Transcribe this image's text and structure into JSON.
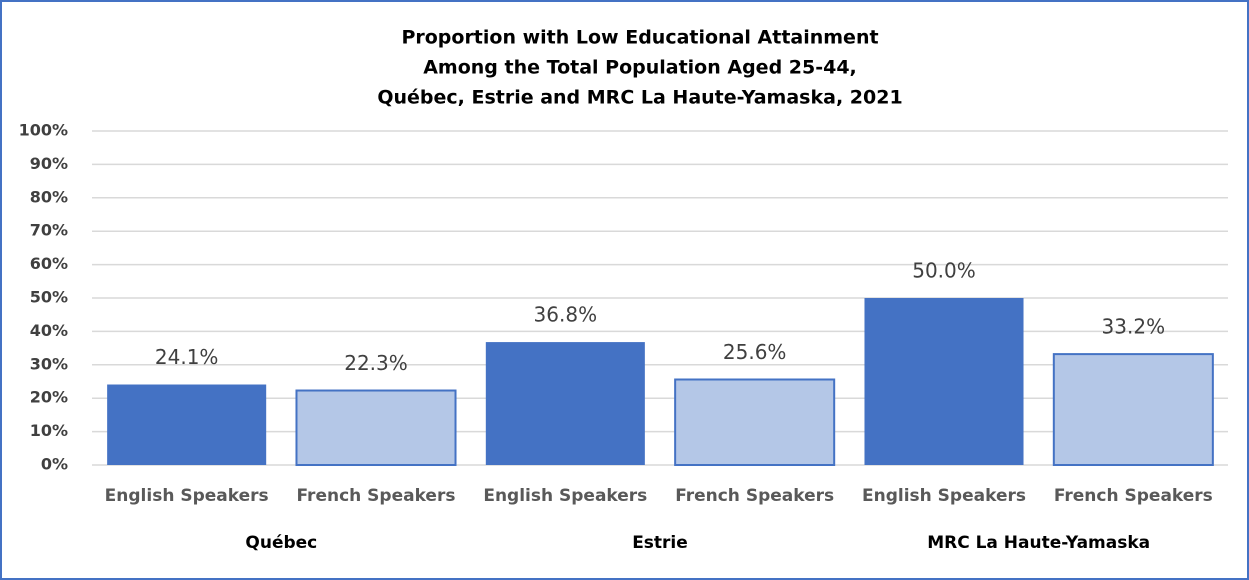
{
  "chart_data": {
    "type": "bar",
    "title": [
      "Proportion with Low Educational Attainment",
      "Among the Total Population Aged 25-44,",
      "Québec, Estrie and MRC La Haute-Yamaska, 2021"
    ],
    "categories": [
      "English Speakers",
      "French Speakers",
      "English Speakers",
      "French Speakers",
      "English Speakers",
      "French Speakers"
    ],
    "groups": [
      "Québec",
      "Estrie",
      "MRC La Haute-Yamaska"
    ],
    "values": [
      24.1,
      22.3,
      36.8,
      25.6,
      50.0,
      33.2
    ],
    "value_labels": [
      "24.1%",
      "22.3%",
      "36.8%",
      "25.6%",
      "50.0%",
      "33.2%"
    ],
    "colors": [
      "#4472c4",
      "#b4c7e7",
      "#4472c4",
      "#b4c7e7",
      "#4472c4",
      "#b4c7e7"
    ],
    "ylim": [
      0,
      100
    ],
    "yticks": [
      {
        "value": 0,
        "label": "0%"
      },
      {
        "value": 10,
        "label": "10%"
      },
      {
        "value": 20,
        "label": "20%"
      },
      {
        "value": 30,
        "label": "30%"
      },
      {
        "value": 40,
        "label": "40%"
      },
      {
        "value": 50,
        "label": "50%"
      },
      {
        "value": 60,
        "label": "60%"
      },
      {
        "value": 70,
        "label": "70%"
      },
      {
        "value": 80,
        "label": "80%"
      },
      {
        "value": 90,
        "label": "90%"
      },
      {
        "value": 100,
        "label": "100%"
      }
    ],
    "grid": true
  }
}
